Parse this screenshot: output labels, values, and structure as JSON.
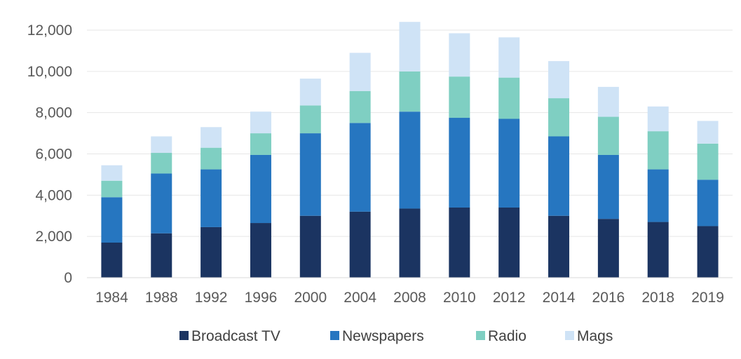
{
  "chart_data": {
    "type": "bar",
    "stacked": true,
    "title": "",
    "xlabel": "",
    "ylabel": "",
    "categories": [
      "1984",
      "1988",
      "1992",
      "1996",
      "2000",
      "2004",
      "2008",
      "2010",
      "2012",
      "2014",
      "2016",
      "2018",
      "2019"
    ],
    "series": [
      {
        "name": "Broadcast TV",
        "color": "#1b3461",
        "values": [
          1700,
          2150,
          2450,
          2650,
          3000,
          3200,
          3350,
          3400,
          3400,
          3000,
          2850,
          2700,
          2500
        ]
      },
      {
        "name": "Newspapers",
        "color": "#2676c0",
        "values": [
          2200,
          2900,
          2800,
          3300,
          4000,
          4300,
          4700,
          4350,
          4300,
          3850,
          3100,
          2550,
          2250
        ]
      },
      {
        "name": "Radio",
        "color": "#7fcfc2",
        "values": [
          800,
          1000,
          1050,
          1050,
          1350,
          1550,
          1950,
          2000,
          2000,
          1850,
          1850,
          1850,
          1750
        ]
      },
      {
        "name": "Mags",
        "color": "#cfe3f6",
        "values": [
          750,
          800,
          1000,
          1050,
          1300,
          1850,
          2400,
          2100,
          1950,
          1800,
          1450,
          1200,
          1100
        ]
      }
    ],
    "ylim": [
      0,
      12000
    ],
    "yticks": [
      0,
      2000,
      4000,
      6000,
      8000,
      10000,
      12000
    ],
    "ytick_labels": [
      "0",
      "2,000",
      "4,000",
      "6,000",
      "8,000",
      "10,000",
      "12,000"
    ],
    "grid": true,
    "legend_position": "bottom"
  }
}
